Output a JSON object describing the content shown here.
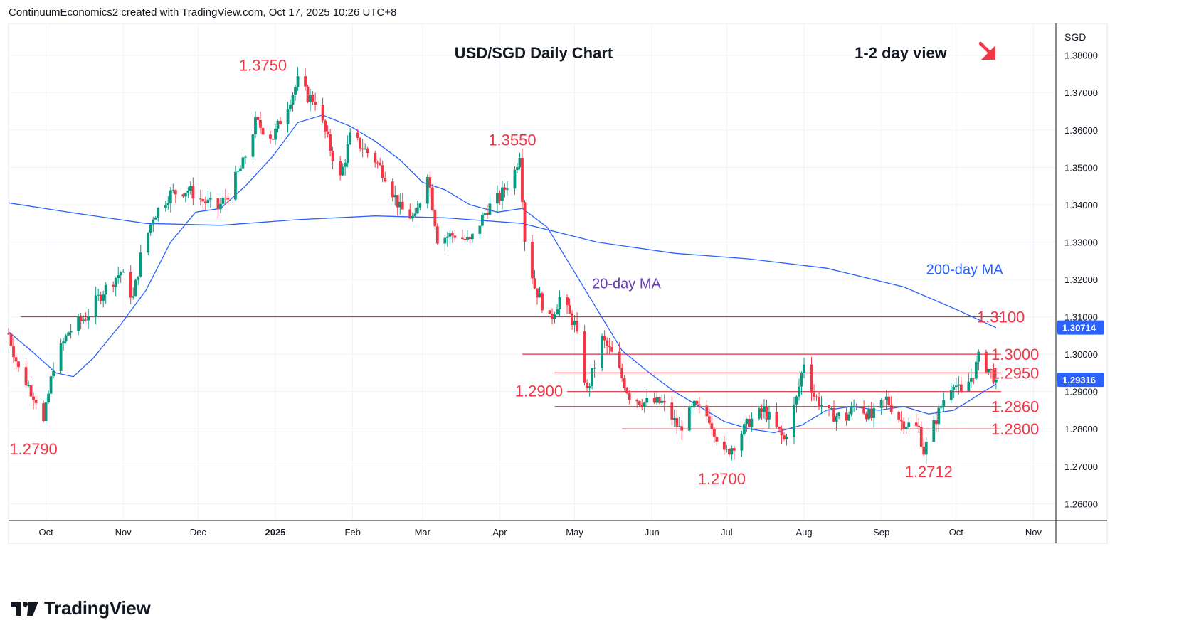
{
  "header": "ContinuumEconomics2 created with TradingView.com, Oct 17, 2025 10:26 UTC+8",
  "brand": "TradingView",
  "currency_label": "SGD",
  "colors": {
    "up": "#089981",
    "down": "#f23645",
    "annotation": "#f23645",
    "ma20": "#2962ff",
    "ma200": "#2962ff",
    "ma20_label": "#673ab7",
    "ma200_label": "#2962ff",
    "level_line": "#e0313a",
    "price_badge": "#2962ff",
    "arrow": "#f23645"
  },
  "chart_data": {
    "type": "candlestick",
    "title": "USD/SGD Daily Chart",
    "subtitle": "1-2 day view",
    "view_direction_icon": "down-right-arrow-icon",
    "y_range": [
      1.2555,
      1.3885
    ],
    "y_ticks": [
      "1.38000",
      "1.37000",
      "1.36000",
      "1.35000",
      "1.34000",
      "1.33000",
      "1.32000",
      "1.31000",
      "1.30000",
      "1.29000",
      "1.28000",
      "1.27000",
      "1.26000"
    ],
    "x_range": [
      "2024-09-16",
      "2025-11-10"
    ],
    "x_ticks": [
      {
        "label": "Oct",
        "date": "2024-10-01",
        "bold": false
      },
      {
        "label": "Nov",
        "date": "2024-11-01",
        "bold": false
      },
      {
        "label": "Dec",
        "date": "2024-12-01",
        "bold": false
      },
      {
        "label": "2025",
        "date": "2025-01-01",
        "bold": true
      },
      {
        "label": "Feb",
        "date": "2025-02-01",
        "bold": false
      },
      {
        "label": "Mar",
        "date": "2025-03-01",
        "bold": false
      },
      {
        "label": "Apr",
        "date": "2025-04-01",
        "bold": false
      },
      {
        "label": "May",
        "date": "2025-05-01",
        "bold": false
      },
      {
        "label": "Jun",
        "date": "2025-06-01",
        "bold": false
      },
      {
        "label": "Jul",
        "date": "2025-07-01",
        "bold": false
      },
      {
        "label": "Aug",
        "date": "2025-08-01",
        "bold": false
      },
      {
        "label": "Sep",
        "date": "2025-09-01",
        "bold": false
      },
      {
        "label": "Oct",
        "date": "2025-10-01",
        "bold": false
      },
      {
        "label": "Nov",
        "date": "2025-11-01",
        "bold": false
      }
    ],
    "price_badges": [
      {
        "label": "1.30714",
        "value": 1.30714
      },
      {
        "label": "1.29316",
        "value": 1.29316
      }
    ],
    "levels": [
      {
        "label": "1.3100",
        "value": 1.31,
        "from": "2024-09-21",
        "to": "2025-10-19"
      },
      {
        "label": "1.3000",
        "value": 1.3,
        "from": "2025-04-10",
        "to": "2025-10-19"
      },
      {
        "label": "1.2950",
        "value": 1.295,
        "from": "2025-04-23",
        "to": "2025-10-19"
      },
      {
        "label": "1.2900",
        "value": 1.29,
        "from": "2025-04-28",
        "to": "2025-10-19"
      },
      {
        "label": "1.2860",
        "value": 1.286,
        "from": "2025-04-23",
        "to": "2025-10-19"
      },
      {
        "label": "1.2800",
        "value": 1.28,
        "from": "2025-05-20",
        "to": "2025-10-19"
      }
    ],
    "annotations": [
      {
        "label": "1.3750",
        "date": "2024-12-27",
        "value": 1.3772
      },
      {
        "label": "1.3550",
        "date": "2025-04-06",
        "value": 1.3572
      },
      {
        "label": "1.2790",
        "date": "2024-09-26",
        "value": 1.2745
      },
      {
        "label": "1.2700",
        "date": "2025-06-29",
        "value": 1.2665
      },
      {
        "label": "1.2712",
        "date": "2025-09-20",
        "value": 1.2684
      }
    ],
    "ma_labels": [
      {
        "label": "20-day MA",
        "date": "2025-05-08",
        "value": 1.319
      },
      {
        "label": "200-day MA",
        "date": "2025-09-19",
        "value": 1.3228
      }
    ],
    "series": [
      {
        "name": "USD/SGD",
        "ohlc_path": [
          [
            "2024-09-16",
            1.3055
          ],
          [
            "2024-09-20",
            1.296
          ],
          [
            "2024-09-27",
            1.288
          ],
          [
            "2024-09-30",
            1.2815
          ],
          [
            "2024-10-04",
            1.297
          ],
          [
            "2024-10-10",
            1.306
          ],
          [
            "2024-10-17",
            1.31
          ],
          [
            "2024-10-24",
            1.317
          ],
          [
            "2024-10-31",
            1.322
          ],
          [
            "2024-11-05",
            1.315
          ],
          [
            "2024-11-08",
            1.326
          ],
          [
            "2024-11-13",
            1.337
          ],
          [
            "2024-11-20",
            1.343
          ],
          [
            "2024-11-27",
            1.344
          ],
          [
            "2024-12-03",
            1.341
          ],
          [
            "2024-12-09",
            1.339
          ],
          [
            "2024-12-13",
            1.343
          ],
          [
            "2024-12-19",
            1.351
          ],
          [
            "2024-12-24",
            1.362
          ],
          [
            "2024-12-31",
            1.358
          ],
          [
            "2025-01-06",
            1.367
          ],
          [
            "2025-01-10",
            1.373
          ],
          [
            "2025-01-14",
            1.369
          ],
          [
            "2025-01-17",
            1.368
          ],
          [
            "2025-01-23",
            1.355
          ],
          [
            "2025-01-27",
            1.347
          ],
          [
            "2025-01-31",
            1.358
          ],
          [
            "2025-02-04",
            1.356
          ],
          [
            "2025-02-10",
            1.352
          ],
          [
            "2025-02-14",
            1.348
          ],
          [
            "2025-02-20",
            1.339
          ],
          [
            "2025-02-26",
            1.336
          ],
          [
            "2025-03-03",
            1.349
          ],
          [
            "2025-03-07",
            1.331
          ],
          [
            "2025-03-14",
            1.332
          ],
          [
            "2025-03-20",
            1.33
          ],
          [
            "2025-03-27",
            1.339
          ],
          [
            "2025-04-01",
            1.342
          ],
          [
            "2025-04-07",
            1.349
          ],
          [
            "2025-04-09",
            1.354
          ],
          [
            "2025-04-11",
            1.331
          ],
          [
            "2025-04-15",
            1.318
          ],
          [
            "2025-04-21",
            1.309
          ],
          [
            "2025-04-25",
            1.315
          ],
          [
            "2025-05-01",
            1.308
          ],
          [
            "2025-05-06",
            1.29
          ],
          [
            "2025-05-12",
            1.304
          ],
          [
            "2025-05-16",
            1.3
          ],
          [
            "2025-05-23",
            1.289
          ],
          [
            "2025-05-29",
            1.287
          ],
          [
            "2025-06-05",
            1.287
          ],
          [
            "2025-06-12",
            1.28
          ],
          [
            "2025-06-18",
            1.286
          ],
          [
            "2025-06-24",
            1.283
          ],
          [
            "2025-06-30",
            1.273
          ],
          [
            "2025-07-04",
            1.276
          ],
          [
            "2025-07-10",
            1.282
          ],
          [
            "2025-07-16",
            1.285
          ],
          [
            "2025-07-24",
            1.277
          ],
          [
            "2025-07-29",
            1.288
          ],
          [
            "2025-08-01",
            1.298
          ],
          [
            "2025-08-05",
            1.289
          ],
          [
            "2025-08-11",
            1.284
          ],
          [
            "2025-08-18",
            1.283
          ],
          [
            "2025-08-22",
            1.287
          ],
          [
            "2025-08-28",
            1.283
          ],
          [
            "2025-09-03",
            1.288
          ],
          [
            "2025-09-09",
            1.282
          ],
          [
            "2025-09-16",
            1.28
          ],
          [
            "2025-09-18",
            1.274
          ],
          [
            "2025-09-22",
            1.281
          ],
          [
            "2025-09-26",
            1.288
          ],
          [
            "2025-09-30",
            1.293
          ],
          [
            "2025-10-03",
            1.289
          ],
          [
            "2025-10-08",
            1.295
          ],
          [
            "2025-10-10",
            1.299
          ],
          [
            "2025-10-14",
            1.296
          ],
          [
            "2025-10-17",
            1.2932
          ]
        ]
      },
      {
        "name": "20-day MA",
        "points": [
          [
            "2024-09-16",
            1.306
          ],
          [
            "2024-09-25",
            1.301
          ],
          [
            "2024-10-05",
            1.295
          ],
          [
            "2024-10-12",
            1.294
          ],
          [
            "2024-10-20",
            1.299
          ],
          [
            "2024-10-31",
            1.308
          ],
          [
            "2024-11-10",
            1.317
          ],
          [
            "2024-11-20",
            1.33
          ],
          [
            "2024-11-30",
            1.338
          ],
          [
            "2024-12-10",
            1.339
          ],
          [
            "2024-12-20",
            1.345
          ],
          [
            "2024-12-31",
            1.353
          ],
          [
            "2025-01-10",
            1.362
          ],
          [
            "2025-01-20",
            1.364
          ],
          [
            "2025-01-31",
            1.361
          ],
          [
            "2025-02-10",
            1.357
          ],
          [
            "2025-02-20",
            1.352
          ],
          [
            "2025-03-01",
            1.346
          ],
          [
            "2025-03-10",
            1.344
          ],
          [
            "2025-03-20",
            1.34
          ],
          [
            "2025-03-31",
            1.338
          ],
          [
            "2025-04-10",
            1.339
          ],
          [
            "2025-04-20",
            1.334
          ],
          [
            "2025-04-30",
            1.323
          ],
          [
            "2025-05-10",
            1.312
          ],
          [
            "2025-05-20",
            1.301
          ],
          [
            "2025-05-31",
            1.295
          ],
          [
            "2025-06-10",
            1.29
          ],
          [
            "2025-06-20",
            1.286
          ],
          [
            "2025-06-30",
            1.282
          ],
          [
            "2025-07-10",
            1.28
          ],
          [
            "2025-07-20",
            1.279
          ],
          [
            "2025-07-31",
            1.281
          ],
          [
            "2025-08-10",
            1.285
          ],
          [
            "2025-08-20",
            1.286
          ],
          [
            "2025-08-31",
            1.285
          ],
          [
            "2025-09-10",
            1.286
          ],
          [
            "2025-09-20",
            1.284
          ],
          [
            "2025-09-30",
            1.285
          ],
          [
            "2025-10-05",
            1.287
          ],
          [
            "2025-10-12",
            1.29
          ],
          [
            "2025-10-17",
            1.292
          ]
        ]
      },
      {
        "name": "200-day MA",
        "points": [
          [
            "2024-09-16",
            1.3405
          ],
          [
            "2024-10-10",
            1.338
          ],
          [
            "2024-11-10",
            1.335
          ],
          [
            "2024-12-10",
            1.3345
          ],
          [
            "2025-01-10",
            1.336
          ],
          [
            "2025-02-10",
            1.337
          ],
          [
            "2025-03-10",
            1.3365
          ],
          [
            "2025-04-10",
            1.335
          ],
          [
            "2025-05-10",
            1.33
          ],
          [
            "2025-06-10",
            1.327
          ],
          [
            "2025-07-10",
            1.3255
          ],
          [
            "2025-08-10",
            1.323
          ],
          [
            "2025-09-10",
            1.318
          ],
          [
            "2025-10-01",
            1.312
          ],
          [
            "2025-10-17",
            1.3071
          ]
        ]
      }
    ]
  }
}
